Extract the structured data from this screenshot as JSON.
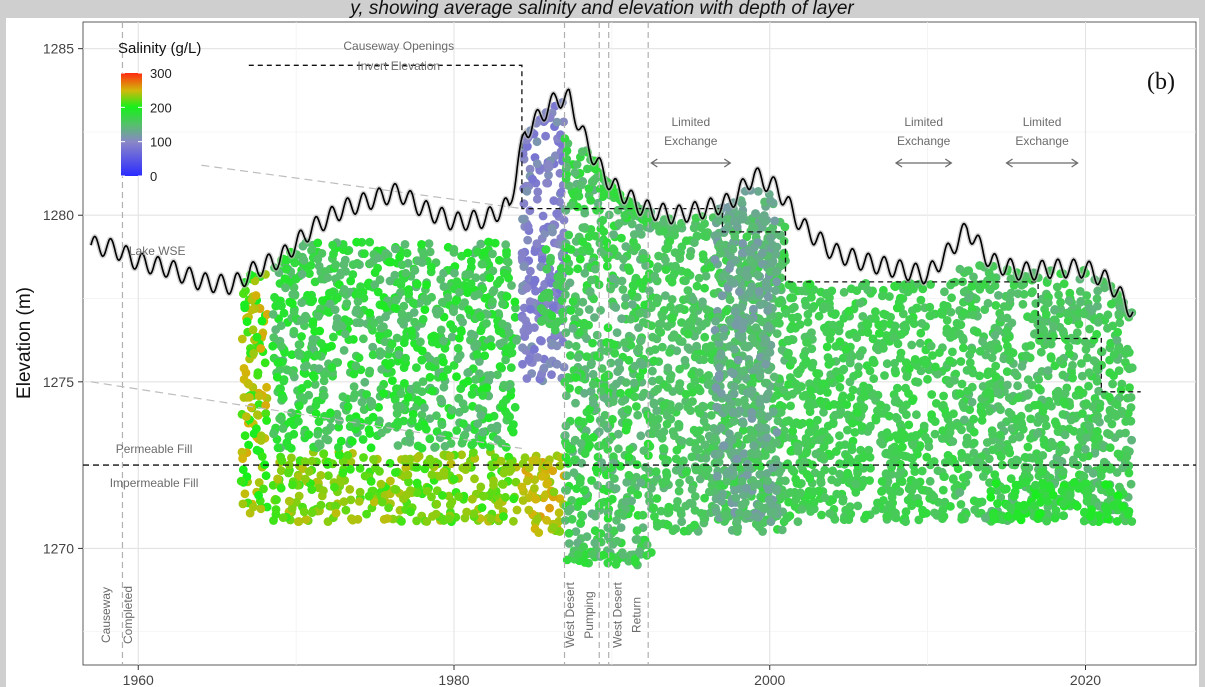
{
  "caption_fragment": "y, showing average salinity and elevation with depth of layer",
  "chart_data": {
    "type": "scatter",
    "panel_label": "(b)",
    "xlabel": "",
    "ylabel": "Elevation (m)",
    "xlim": [
      1956.5,
      2027
    ],
    "ylim": [
      1266.5,
      1285.8
    ],
    "x_ticks": [
      1960,
      1980,
      2000,
      2020
    ],
    "y_ticks": [
      1270,
      1275,
      1280,
      1285
    ],
    "grid": true,
    "legend": {
      "title": "Salinity (g/L)",
      "placement": "top-left",
      "min": 0,
      "max": 300,
      "ticks": [
        0,
        100,
        200,
        300
      ]
    },
    "series": [
      {
        "name": "Lake WSE",
        "type": "line",
        "color": "#000000",
        "x": [
          1957.0,
          1958.5,
          1960.0,
          1962.0,
          1964.0,
          1966.0,
          1967.5,
          1969.0,
          1971.0,
          1973.0,
          1975.0,
          1976.5,
          1978.0,
          1980.0,
          1982.0,
          1983.5,
          1984.5,
          1985.5,
          1986.5,
          1987.3,
          1988.0,
          1989.0,
          1990.0,
          1992.0,
          1994.0,
          1996.0,
          1997.5,
          1999.0,
          2000.5,
          2002.0,
          2004.0,
          2006.0,
          2008.0,
          2010.0,
          2011.5,
          2012.5,
          2014.0,
          2016.0,
          2018.0,
          2020.0,
          2021.5,
          2023.0
        ],
        "y": [
          1279.1,
          1279.0,
          1278.6,
          1278.4,
          1278.0,
          1277.9,
          1278.4,
          1278.7,
          1279.6,
          1280.2,
          1280.5,
          1280.7,
          1280.2,
          1279.8,
          1279.9,
          1280.3,
          1282.5,
          1283.0,
          1283.5,
          1283.5,
          1282.6,
          1281.6,
          1280.9,
          1280.2,
          1280.0,
          1280.2,
          1280.4,
          1281.2,
          1280.8,
          1279.7,
          1278.9,
          1278.6,
          1278.4,
          1278.2,
          1279.0,
          1279.6,
          1278.6,
          1278.3,
          1278.4,
          1278.4,
          1278.0,
          1277.1
        ]
      },
      {
        "name": "Causeway Openings Invert Elevation",
        "type": "step",
        "color": "#000000",
        "x": [
          1967.0,
          1984.3,
          1984.3,
          1997.0,
          1997.0,
          2001.0,
          2001.0,
          2017.0,
          2017.0,
          2021.0,
          2021.0,
          2023.5
        ],
        "y": [
          1284.5,
          1284.5,
          1280.2,
          1280.2,
          1279.5,
          1279.5,
          1278.0,
          1278.0,
          1276.3,
          1276.3,
          1274.7,
          1274.7
        ]
      }
    ],
    "reference_lines": {
      "horizontal": [
        {
          "y": 1272.5,
          "label_above": "Permeable Fill",
          "label_below": "Impermeable Fill"
        }
      ],
      "vertical": [
        1959.0,
        1987.0,
        1989.2,
        1989.8,
        1992.3
      ]
    },
    "annotations": {
      "causeway_completed": [
        "Causeway",
        "Completed"
      ],
      "west_desert_pumping": [
        "West Desert",
        "Pumping"
      ],
      "west_desert_return": [
        "West Desert",
        "Return"
      ],
      "causeway_openings": [
        "Causeway Openings",
        "Invert Elevation"
      ],
      "lake_wse": "Lake WSE",
      "limited_exchange": [
        {
          "lines": [
            "Limited",
            "Exchange"
          ],
          "x_range": [
            1992.5,
            1997.5
          ]
        },
        {
          "lines": [
            "Limited",
            "Exchange"
          ],
          "x_range": [
            2008.0,
            2011.5
          ]
        },
        {
          "lines": [
            "Limited",
            "Exchange"
          ],
          "x_range": [
            2015.0,
            2019.5
          ]
        }
      ]
    },
    "sample_clusters": [
      {
        "x_range": [
          1966.5,
          1968.2
        ],
        "y_range": [
          1271.0,
          1278.5
        ],
        "salinity": 205,
        "alt_salinity": 245
      },
      {
        "x_range": [
          1968.5,
          1984.0
        ],
        "y_range": [
          1270.8,
          1272.9
        ],
        "salinity": 215,
        "alt_salinity": 235
      },
      {
        "x_range": [
          1968.5,
          1984.0
        ],
        "y_range": [
          1273.0,
          1279.2
        ],
        "salinity": 150,
        "alt_salinity": 185
      },
      {
        "x_range": [
          1984.3,
          1987.0
        ],
        "y_range": [
          1275.0,
          1283.5
        ],
        "salinity": 105,
        "alt_salinity": 90
      },
      {
        "x_range": [
          1984.3,
          1987.0
        ],
        "y_range": [
          1270.4,
          1272.8
        ],
        "salinity": 250,
        "alt_salinity": 235
      },
      {
        "x_range": [
          1985.5,
          1987.0
        ],
        "y_range": [
          1276.5,
          1279.0
        ],
        "salinity": 170,
        "alt_salinity": 160
      },
      {
        "x_range": [
          1987.0,
          1992.5
        ],
        "y_range": [
          1269.5,
          1282.5
        ],
        "salinity": 145,
        "alt_salinity": 175
      },
      {
        "x_range": [
          1992.5,
          2001.0
        ],
        "y_range": [
          1270.5,
          1280.0
        ],
        "salinity": 150,
        "alt_salinity": 165
      },
      {
        "x_range": [
          1996.5,
          2000.5
        ],
        "y_range": [
          1270.8,
          1280.8
        ],
        "salinity": 125,
        "alt_salinity": 140
      },
      {
        "x_range": [
          2001.0,
          2012.0
        ],
        "y_range": [
          1270.8,
          1278.0
        ],
        "salinity": 160,
        "alt_salinity": 170
      },
      {
        "x_range": [
          2012.0,
          2023.0
        ],
        "y_range": [
          1270.8,
          1278.5
        ],
        "salinity": 165,
        "alt_salinity": 150
      },
      {
        "x_range": [
          2014.0,
          2023.0
        ],
        "y_range": [
          1270.8,
          1272.0
        ],
        "salinity": 190,
        "alt_salinity": 175
      }
    ]
  }
}
